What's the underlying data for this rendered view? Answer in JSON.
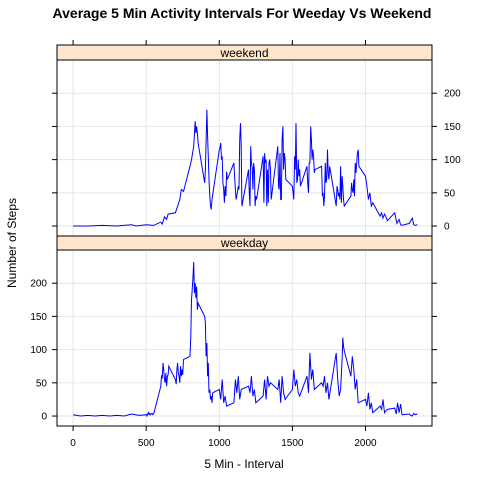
{
  "chart_data": {
    "type": "line",
    "title": "Average 5 Min Activity Intervals For Weeday Vs Weekend",
    "xlabel": "5 Min - Interval",
    "ylabel": "Number of Steps",
    "xlim": [
      -110,
      2455
    ],
    "ylim": [
      -15,
      250
    ],
    "x_ticks": [
      0,
      500,
      1000,
      1500,
      2000
    ],
    "y_ticks": [
      0,
      50,
      100,
      150,
      200
    ],
    "grid": true,
    "line_color": "#0000ff",
    "strip_color": "#ffe5cc",
    "panels": [
      {
        "label": "weekend",
        "series": [
          {
            "x": [
              0,
              100,
              200,
              300,
              400,
              430,
              500,
              550,
              600,
              610,
              625,
              640,
              650,
              700,
              730,
              740,
              755,
              800,
              810,
              825,
              835,
              840,
              845,
              850,
              855,
              900,
              905,
              915,
              920,
              925,
              930,
              935,
              940,
              945,
              950,
              1000,
              1005,
              1010,
              1015,
              1020,
              1025,
              1030,
              1035,
              1040,
              1045,
              1050,
              1055,
              1100,
              1105,
              1110,
              1115,
              1120,
              1130,
              1135,
              1140,
              1145,
              1150,
              1155,
              1200,
              1205,
              1210,
              1215,
              1220,
              1225,
              1230,
              1235,
              1240,
              1245,
              1250,
              1255,
              1300,
              1305,
              1310,
              1315,
              1320,
              1325,
              1330,
              1335,
              1340,
              1345,
              1350,
              1355,
              1400,
              1405,
              1410,
              1415,
              1420,
              1425,
              1430,
              1435,
              1440,
              1445,
              1450,
              1455,
              1500,
              1505,
              1510,
              1515,
              1520,
              1525,
              1530,
              1535,
              1540,
              1545,
              1550,
              1555,
              1600,
              1605,
              1610,
              1615,
              1620,
              1625,
              1630,
              1635,
              1640,
              1645,
              1650,
              1655,
              1700,
              1705,
              1710,
              1715,
              1720,
              1725,
              1730,
              1735,
              1740,
              1745,
              1750,
              1755,
              1800,
              1805,
              1810,
              1815,
              1820,
              1825,
              1830,
              1835,
              1840,
              1845,
              1850,
              1855,
              1900,
              1905,
              1910,
              1915,
              1920,
              1925,
              1930,
              1935,
              1940,
              1945,
              1950,
              1955,
              2000,
              2010,
              2020,
              2030,
              2040,
              2050,
              2100,
              2110,
              2120,
              2130,
              2140,
              2150,
              2200,
              2215,
              2230,
              2240,
              2250,
              2300,
              2320,
              2330,
              2340,
              2355
            ],
            "values": [
              0,
              0,
              1,
              0,
              2,
              0,
              2,
              1,
              6,
              3,
              14,
              10,
              18,
              20,
              40,
              55,
              52,
              90,
              100,
              120,
              158,
              140,
              150,
              140,
              125,
              65,
              85,
              175,
              135,
              105,
              70,
              45,
              30,
              25,
              40,
              115,
              118,
              125,
              100,
              105,
              65,
              55,
              35,
              60,
              45,
              82,
              70,
              95,
              75,
              55,
              40,
              45,
              60,
              55,
              130,
              155,
              120,
              30,
              85,
              50,
              30,
              120,
              95,
              88,
              55,
              95,
              85,
              30,
              45,
              40,
              105,
              35,
              110,
              95,
              100,
              30,
              85,
              35,
              95,
              100,
              85,
              40,
              120,
              60,
              55,
              110,
              40,
              40,
              130,
              150,
              85,
              110,
              100,
              70,
              60,
              50,
              40,
              105,
              85,
              155,
              65,
              70,
              100,
              75,
              85,
              60,
              90,
              65,
              50,
              95,
              95,
              150,
              130,
              100,
              115,
              105,
              80,
              85,
              90,
              45,
              50,
              30,
              45,
              95,
              65,
              70,
              115,
              80,
              70,
              90,
              30,
              60,
              55,
              45,
              50,
              40,
              90,
              35,
              75,
              60,
              40,
              30,
              45,
              65,
              55,
              50,
              70,
              45,
              95,
              80,
              95,
              110,
              115,
              90,
              75,
              60,
              40,
              50,
              30,
              35,
              15,
              20,
              12,
              18,
              14,
              8,
              20,
              4,
              10,
              2,
              1,
              4,
              12,
              2,
              1,
              2
            ]
          }
        ]
      },
      {
        "label": "weekday",
        "series": [
          {
            "x": [
              0,
              50,
              100,
              150,
              200,
              250,
              300,
              350,
              400,
              450,
              500,
              505,
              510,
              515,
              520,
              525,
              530,
              535,
              540,
              545,
              550,
              555,
              600,
              605,
              610,
              615,
              620,
              625,
              630,
              635,
              640,
              645,
              650,
              655,
              700,
              705,
              710,
              715,
              720,
              725,
              730,
              735,
              740,
              745,
              750,
              755,
              800,
              805,
              810,
              815,
              820,
              825,
              830,
              835,
              840,
              845,
              850,
              855,
              900,
              905,
              910,
              915,
              920,
              925,
              930,
              935,
              940,
              945,
              950,
              955,
              1000,
              1010,
              1020,
              1030,
              1040,
              1050,
              1100,
              1110,
              1120,
              1130,
              1140,
              1150,
              1200,
              1210,
              1220,
              1230,
              1240,
              1250,
              1300,
              1310,
              1320,
              1330,
              1340,
              1350,
              1400,
              1410,
              1420,
              1430,
              1440,
              1450,
              1500,
              1510,
              1520,
              1530,
              1540,
              1550,
              1600,
              1610,
              1620,
              1630,
              1640,
              1650,
              1700,
              1710,
              1720,
              1730,
              1740,
              1750,
              1800,
              1810,
              1820,
              1830,
              1840,
              1845,
              1850,
              1855,
              1900,
              1910,
              1920,
              1930,
              1940,
              1950,
              2000,
              2010,
              2020,
              2030,
              2040,
              2050,
              2100,
              2110,
              2120,
              2130,
              2140,
              2150,
              2200,
              2210,
              2220,
              2230,
              2240,
              2250,
              2300,
              2310,
              2320,
              2330,
              2340,
              2355
            ],
            "values": [
              2,
              0,
              1,
              0,
              1,
              0,
              1,
              0,
              3,
              1,
              2,
              0,
              3,
              5,
              2,
              4,
              2,
              3,
              4,
              2,
              3,
              6,
              45,
              60,
              58,
              80,
              70,
              55,
              50,
              65,
              45,
              60,
              62,
              75,
              55,
              48,
              70,
              80,
              65,
              60,
              50,
              75,
              60,
              70,
              62,
              85,
              90,
              120,
              175,
              190,
              210,
              232,
              185,
              200,
              178,
              195,
              160,
              170,
              150,
              140,
              90,
              110,
              60,
              80,
              35,
              40,
              25,
              30,
              20,
              35,
              40,
              25,
              55,
              20,
              30,
              15,
              20,
              55,
              35,
              60,
              25,
              40,
              45,
              35,
              60,
              30,
              40,
              20,
              30,
              55,
              25,
              60,
              45,
              50,
              40,
              55,
              20,
              60,
              35,
              25,
              40,
              70,
              45,
              55,
              35,
              30,
              60,
              35,
              95,
              55,
              70,
              40,
              50,
              45,
              60,
              35,
              50,
              25,
              95,
              55,
              30,
              40,
              85,
              118,
              105,
              98,
              60,
              90,
              70,
              40,
              55,
              20,
              25,
              15,
              35,
              10,
              20,
              5,
              15,
              10,
              25,
              5,
              8,
              10,
              12,
              3,
              20,
              5,
              18,
              2,
              3,
              1,
              0,
              4,
              2,
              3
            ]
          }
        ]
      }
    ]
  }
}
